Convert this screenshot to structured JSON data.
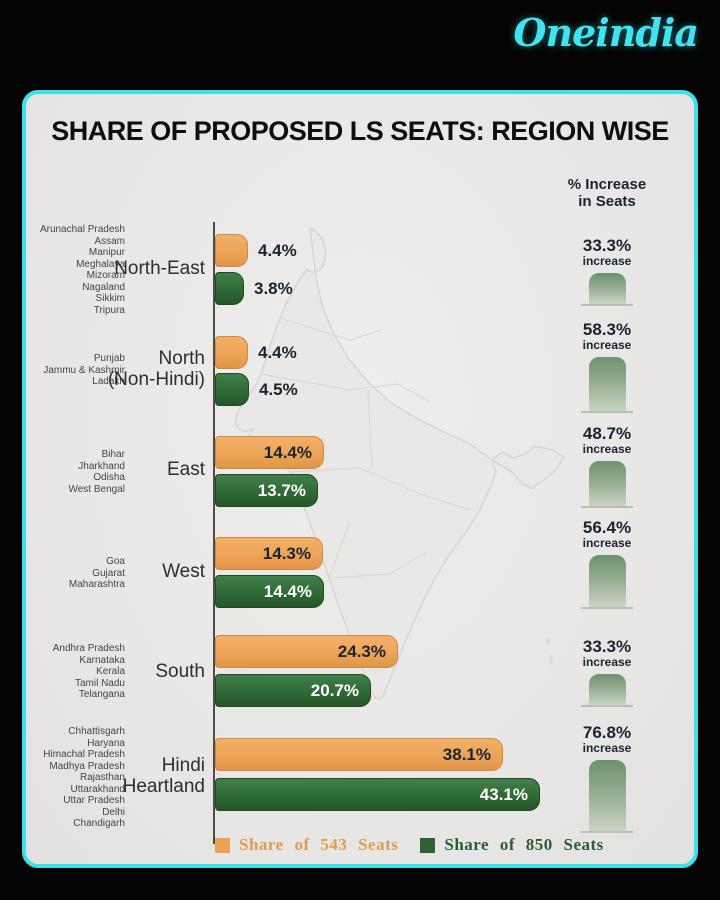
{
  "brand": {
    "logo_text": "Oneindia"
  },
  "card": {
    "title": "SHARE OF PROPOSED LS SEATS: REGION WISE"
  },
  "increase_header": "% Increase\nin Seats",
  "legend": [
    {
      "label": "Share of 543 Seats",
      "color": "#E9A355"
    },
    {
      "label": "Share of 850 Seats",
      "color": "#2E6234"
    }
  ],
  "regions": [
    {
      "label": "North-East",
      "states": [
        "Arunachal Pradesh",
        "Assam",
        "Manipur",
        "Meghalaya",
        "Mizoram",
        "Nagaland",
        "Sikkim",
        "Tripura"
      ],
      "share543": "4.4%",
      "share850": "3.8%",
      "increase_value": "33.3%",
      "increase_word": "increase"
    },
    {
      "label": "North\n(Non-Hindi)",
      "states": [
        "Punjab",
        "Jammu & Kashmir",
        "Ladakh"
      ],
      "share543": "4.4%",
      "share850": "4.5%",
      "increase_value": "58.3%",
      "increase_word": "increase"
    },
    {
      "label": "East",
      "states": [
        "Bihar",
        "Jharkhand",
        "Odisha",
        "West Bengal"
      ],
      "share543": "14.4%",
      "share850": "13.7%",
      "increase_value": "48.7%",
      "increase_word": "increase"
    },
    {
      "label": "West",
      "states": [
        "Goa",
        "Gujarat",
        "Maharashtra"
      ],
      "share543": "14.3%",
      "share850": "14.4%",
      "increase_value": "56.4%",
      "increase_word": "increase"
    },
    {
      "label": "South",
      "states": [
        "Andhra Pradesh",
        "Karnataka",
        "Kerala",
        "Tamil Nadu",
        "Telangana"
      ],
      "share543": "24.3%",
      "share850": "20.7%",
      "increase_value": "33.3%",
      "increase_word": "increase"
    },
    {
      "label": "Hindi\nHeartland",
      "states": [
        "Chhattisgarh",
        "Haryana",
        "Himachal Pradesh",
        "Madhya Pradesh",
        "Rajasthan",
        "Uttarakhand",
        "Uttar Pradesh",
        "Delhi",
        "Chandigarh"
      ],
      "share543": "38.1%",
      "share850": "43.1%",
      "increase_value": "76.8%",
      "increase_word": "increase"
    }
  ],
  "chart_data": {
    "type": "bar",
    "orientation": "horizontal",
    "title": "SHARE OF PROPOSED LS SEATS: REGION WISE",
    "categories": [
      "North-East",
      "North (Non-Hindi)",
      "East",
      "West",
      "South",
      "Hindi Heartland"
    ],
    "series": [
      {
        "name": "Share of 543 Seats",
        "unit": "%",
        "color": "#E9A355",
        "values": [
          4.4,
          4.4,
          14.4,
          14.3,
          24.3,
          38.1
        ]
      },
      {
        "name": "Share of 850 Seats",
        "unit": "%",
        "color": "#2E6234",
        "values": [
          3.8,
          4.5,
          13.7,
          14.4,
          20.7,
          43.1
        ]
      }
    ],
    "increase_pct": [
      33.3,
      58.3,
      48.7,
      56.4,
      33.3,
      76.8
    ],
    "increase_label": "% Increase in Seats",
    "legend_position": "bottom",
    "value_labels": true
  }
}
